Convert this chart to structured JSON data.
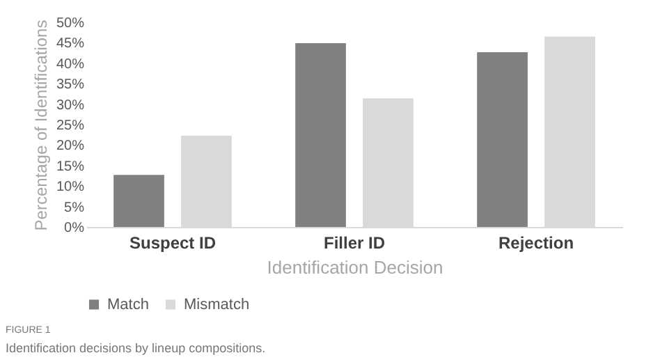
{
  "chart_data": {
    "type": "bar",
    "categories": [
      "Suspect ID",
      "Filler ID",
      "Rejection"
    ],
    "series": [
      {
        "name": "Match",
        "color": "#808080",
        "values": [
          12.7,
          44.9,
          42.7
        ]
      },
      {
        "name": "Mismatch",
        "color": "#d9d9d9",
        "values": [
          22.3,
          31.4,
          46.5
        ]
      }
    ],
    "xlabel": "Identification Decision",
    "ylabel": "Percentage of Identifications",
    "ylim": [
      0,
      50
    ],
    "yticks": [
      {
        "value": 0,
        "label": "0%"
      },
      {
        "value": 5,
        "label": "5%"
      },
      {
        "value": 10,
        "label": "10%"
      },
      {
        "value": 15,
        "label": "15%"
      },
      {
        "value": 20,
        "label": "20%"
      },
      {
        "value": 25,
        "label": "25%"
      },
      {
        "value": 30,
        "label": "30%"
      },
      {
        "value": 35,
        "label": "35%"
      },
      {
        "value": 40,
        "label": "40%"
      },
      {
        "value": 45,
        "label": "45%"
      },
      {
        "value": 50,
        "label": "50%"
      }
    ],
    "grid": false,
    "legend": "bottom",
    "annotations": [
      "FIGURE 1",
      "Identification decisions by lineup compositions."
    ]
  }
}
